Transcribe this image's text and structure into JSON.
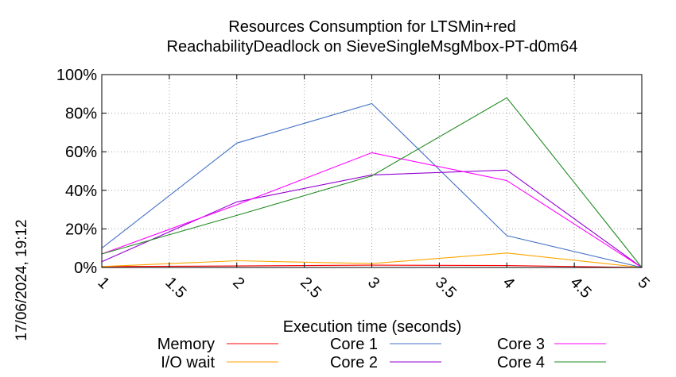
{
  "chart_data": {
    "type": "line",
    "title": [
      "Resources Consumption for LTSMin+red",
      "ReachabilityDeadlock on SieveSingleMsgMbox-PT-d0m64"
    ],
    "xlabel": "Execution time (seconds)",
    "ylabel": "",
    "xlim": [
      1,
      5
    ],
    "ylim": [
      0,
      100
    ],
    "x_ticks": [
      "1",
      "1.5",
      "2",
      "2.5",
      "3",
      "3.5",
      "4",
      "4.5",
      "5"
    ],
    "y_ticks": [
      "0%",
      "20%",
      "40%",
      "60%",
      "80%",
      "100%"
    ],
    "grid": true,
    "legend_position": "bottom",
    "x": [
      1,
      2,
      3,
      4,
      5
    ],
    "series": [
      {
        "name": "Memory",
        "color": "#ff0000",
        "values": [
          0.5,
          0.8,
          1.2,
          1.0,
          0
        ]
      },
      {
        "name": "I/O wait",
        "color": "#ffa500",
        "values": [
          0.5,
          3.5,
          2.0,
          7.5,
          0
        ]
      },
      {
        "name": "Core 1",
        "color": "#4472c4",
        "values": [
          10,
          64.5,
          85,
          16.5,
          0
        ]
      },
      {
        "name": "Core 2",
        "color": "#9400d3",
        "values": [
          3,
          34,
          48,
          50.5,
          0
        ]
      },
      {
        "name": "Core 3",
        "color": "#ff00ff",
        "values": [
          7,
          32.5,
          59.5,
          45,
          0
        ]
      },
      {
        "name": "Core 4",
        "color": "#228b22",
        "values": [
          7,
          27,
          47.5,
          88,
          0
        ]
      }
    ]
  },
  "timestamp": "17/06/2024, 19:12"
}
